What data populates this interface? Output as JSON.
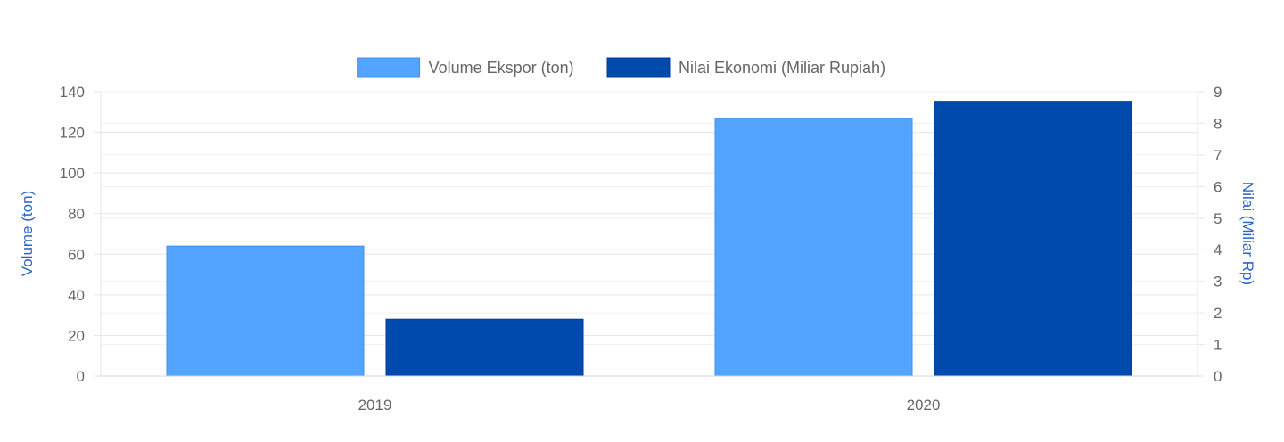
{
  "chart_data": {
    "type": "bar",
    "categories": [
      "2019",
      "2020"
    ],
    "series": [
      {
        "name": "Volume Ekspor (ton)",
        "values": [
          64,
          127
        ],
        "axis": "left",
        "color": "#52a4ff",
        "border_color": "#3d8ff0"
      },
      {
        "name": "Nilai Ekonomi (Miliar Rupiah)",
        "values": [
          1.8,
          8.7
        ],
        "axis": "right",
        "color": "#004aad",
        "border_color": "#003e91"
      }
    ],
    "y_left": {
      "label": "Volume (ton)",
      "min": 0,
      "max": 140,
      "ticks": [
        "0",
        "20",
        "40",
        "60",
        "80",
        "100",
        "120",
        "140"
      ],
      "label_color": "#2a64c8"
    },
    "y_right": {
      "label": "Nilai (Miliar Rp)",
      "min": 0,
      "max": 9,
      "ticks": [
        "0",
        "1",
        "2",
        "3",
        "4",
        "5",
        "6",
        "7",
        "8",
        "9"
      ],
      "label_color": "#2a64c8"
    },
    "grid": true,
    "legend_position": "top-center",
    "grid_color": "#e6e6e6",
    "tick_color": "#666666"
  }
}
